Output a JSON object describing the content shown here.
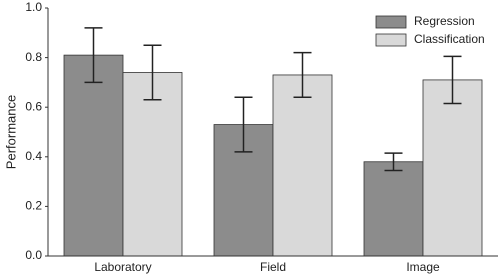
{
  "chart_data": {
    "type": "bar",
    "y_label": "Performance",
    "categories": [
      "Laboratory",
      "Field",
      "Image"
    ],
    "series": [
      {
        "name": "Regression",
        "color": "#8c8c8c",
        "values": [
          0.81,
          0.53,
          0.38
        ],
        "errors": [
          0.11,
          0.11,
          0.035
        ]
      },
      {
        "name": "Classification",
        "color": "#d9d9d9",
        "values": [
          0.74,
          0.73,
          0.71
        ],
        "errors": [
          0.11,
          0.09,
          0.095
        ]
      }
    ],
    "ylim": [
      0,
      1
    ],
    "yticks": [
      {
        "value": 0,
        "label": "0.0"
      },
      0.2,
      0.4,
      0.6,
      0.8,
      {
        "value": 1,
        "label": "1.0"
      }
    ],
    "legend": "upper-right"
  }
}
